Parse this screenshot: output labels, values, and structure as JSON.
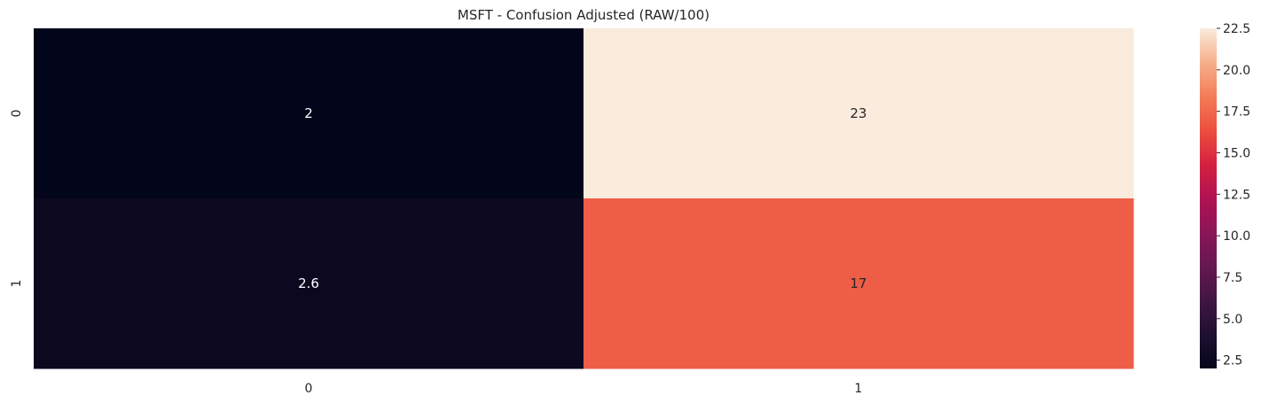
{
  "chart_data": {
    "type": "heatmap",
    "title": "MSFT - Confusion Adjusted (RAW/100)",
    "xlabel": "",
    "ylabel": "",
    "x_categories": [
      "0",
      "1"
    ],
    "y_categories": [
      "0",
      "1"
    ],
    "values": [
      [
        2.0,
        22.5
      ],
      [
        2.6,
        17.0
      ]
    ],
    "annotations": [
      [
        "2",
        "23"
      ],
      [
        "2.6",
        "17"
      ]
    ],
    "colormap": "rocket",
    "colorbar": {
      "range": [
        2.0,
        22.5
      ],
      "ticks": [
        2.5,
        5.0,
        7.5,
        10.0,
        12.5,
        15.0,
        17.5,
        20.0,
        22.5
      ],
      "tick_labels": [
        "2.5",
        "5.0",
        "7.5",
        "10.0",
        "12.5",
        "15.0",
        "17.5",
        "20.0",
        "22.5"
      ]
    },
    "grid": false,
    "legend": "colorbar-right"
  }
}
